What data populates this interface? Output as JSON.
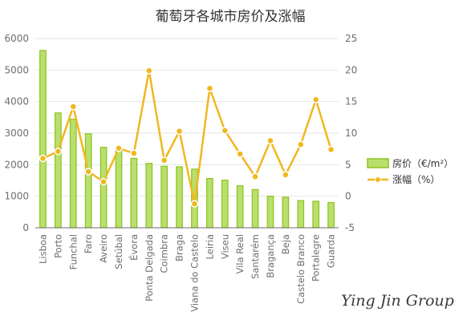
{
  "colors": {
    "bar_fill": "#b9df6c",
    "bar_stroke": "#8dc21f",
    "line": "#f0b81f",
    "grid": "#e6e6e6",
    "axis": "#6e6e6e"
  },
  "watermark": "Ying Jin Group",
  "chart_data": {
    "type": "bar",
    "title": "葡萄牙各城市房价及涨幅",
    "categories": [
      "Lisboa",
      "Porto",
      "Funchal",
      "Faro",
      "Aveiro",
      "Setúbal",
      "Évora",
      "Ponta Delgada",
      "Coimbra",
      "Braga",
      "Viana do Castelo",
      "Leiria",
      "Viseu",
      "Vila Real",
      "Santarém",
      "Bragança",
      "Beja",
      "Castelo Branco",
      "Portalegre",
      "Guarda"
    ],
    "left_axis": {
      "min": 0,
      "max": 6000,
      "ticks": [
        0,
        1000,
        2000,
        3000,
        4000,
        5000,
        6000
      ]
    },
    "right_axis": {
      "min": -5,
      "max": 25,
      "ticks": [
        -5,
        0,
        5,
        10,
        15,
        20,
        25
      ]
    },
    "grid": true,
    "legend_position": "right",
    "series": [
      {
        "name": "房价（€/m²）",
        "type": "bar",
        "axis": "left",
        "values": [
          5620,
          3640,
          3440,
          2980,
          2550,
          2450,
          2200,
          2040,
          1950,
          1930,
          1860,
          1560,
          1510,
          1330,
          1210,
          1000,
          970,
          860,
          840,
          800
        ]
      },
      {
        "name": "涨幅（%）",
        "type": "line",
        "axis": "right",
        "values": [
          6.0,
          7.1,
          14.2,
          3.9,
          2.3,
          7.6,
          6.8,
          19.9,
          5.7,
          10.3,
          -1.2,
          17.1,
          10.4,
          6.7,
          3.1,
          8.8,
          3.4,
          8.2,
          15.3,
          7.4
        ]
      }
    ]
  }
}
